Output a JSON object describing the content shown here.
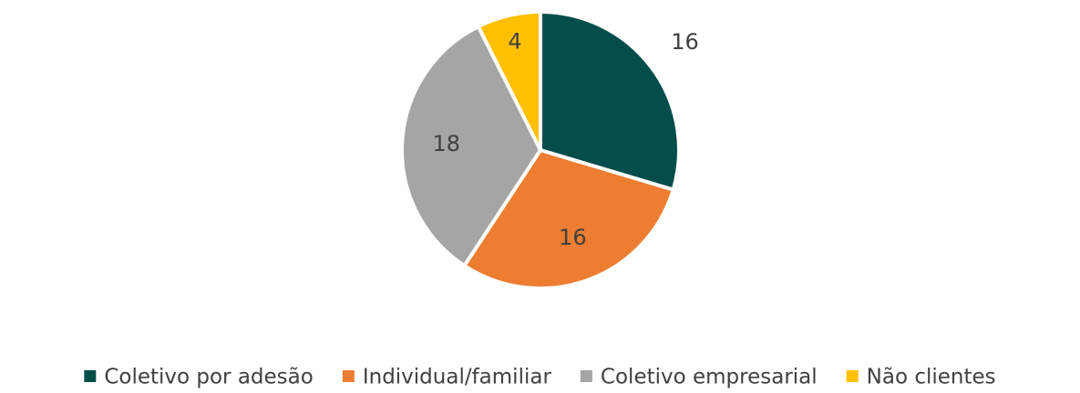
{
  "chart_data": {
    "type": "pie",
    "categories": [
      "Coletivo por adesão",
      "Individual/familiar",
      "Coletivo empresarial",
      "Não clientes"
    ],
    "values": [
      16,
      16,
      18,
      4
    ],
    "colors": [
      "#034d4b",
      "#ed7d31",
      "#a5a5a5",
      "#ffc000"
    ],
    "legend": "bottom"
  }
}
